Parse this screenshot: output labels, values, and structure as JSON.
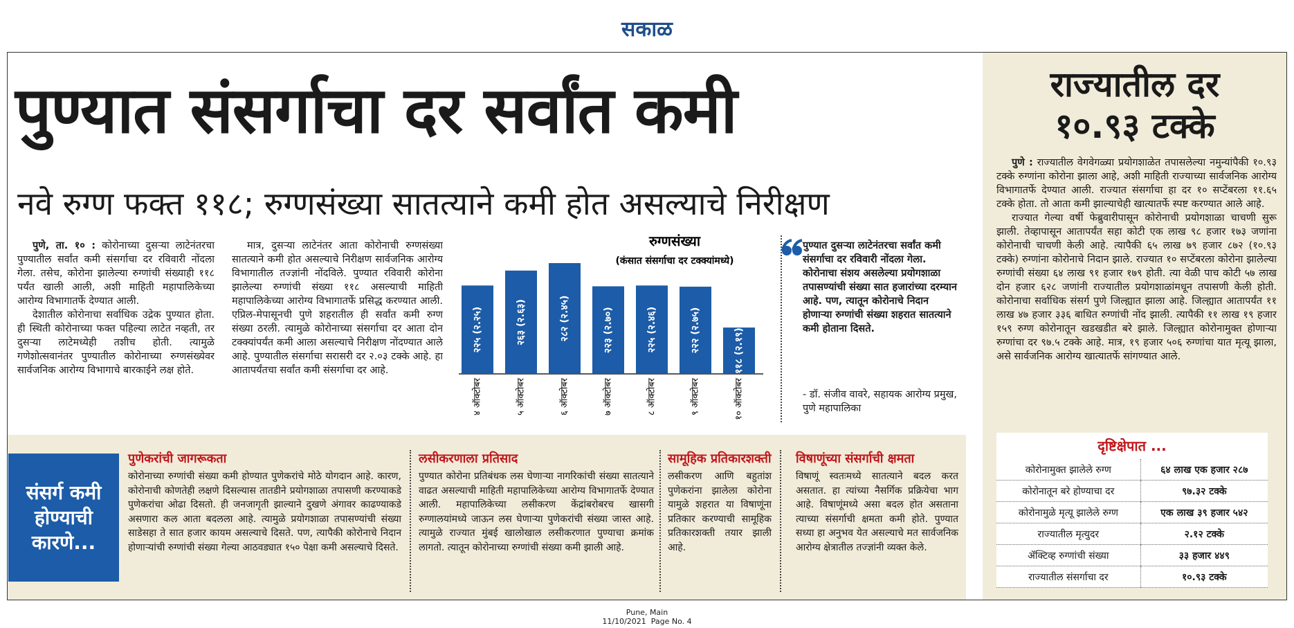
{
  "header": {
    "logo": "सकाळ"
  },
  "article": {
    "headline": "पुण्यात संसर्गाचा दर सर्वांत कमी",
    "subheadline": "नवे रुग्ण फक्त ११८; रुग्णसंख्या सातत्याने कमी होत असल्याचे निरीक्षण",
    "dateline": "पुणे, ता. १० :",
    "columns": [
      [
        "कोरोनाच्या दुसऱ्या लाटेनंतरचा पुण्यातील सर्वांत कमी संसर्गाचा दर रविवारी नोंदला गेला. तसेच, कोरोना झालेल्या रुग्णांची संख्याही ११८ पर्यंत खाली आली, अशी माहिती महापालिकेच्या आरोग्य विभागातर्फे देण्यात आली.",
        "देशातील कोरोनाचा सर्वाधिक उद्रेक पुण्यात होता. ही स्थिती कोरोनाच्या फक्त पहिल्या लाटेत नव्हती, तर दुसऱ्या लाटेमध्येही तशीच होती. त्यामुळे गणेशोत्सवानंतर पुण्यातील कोरोनाच्या रुग्णसंख्येवर सार्वजनिक आरोग्य विभागाचे बारकाईने लक्ष होते."
      ],
      [
        "मात्र, दुसऱ्या लाटेनंतर आता कोरोनाची रुग्णसंख्या सातत्याने कमी होत असल्याचे निरीक्षण सार्वजनिक आरोग्य विभागातील तज्ज्ञांनी नोंदविले. पुण्यात रविवारी कोरोना झालेल्या रुग्णांची संख्या ११८ असल्याची माहिती महापालिकेच्या आरोग्य विभागातर्फे प्रसिद्ध करण्यात आली. एप्रिल-मेपासूनची पुणे शहरातील ही सर्वांत कमी रुग्ण संख्या ठरली. त्यामुळे कोरोनाच्या संसर्गाचा दर आता दोन टक्क्यांपर्यंत कमी आला असल्याचे निरीक्षण नोंदण्यात आले आहे. पुण्यातील संसर्गाचा सरासरी दर २.०३ टक्के आहे. हा आतापर्यंतचा सर्वांत कमी संसर्गाचा दर आहे."
      ]
    ],
    "quote": {
      "text": "पुण्यात दुसऱ्या लाटेनंतरचा सर्वांत कमी संसर्गाचा दर रविवारी नोंदला गेला. कोरोनाचा संशय असलेल्या प्रयोगशाळा तपासण्यांची संख्या सात हजारांच्या दरम्यान आहे. पण, त्यातून कोरोनाचे निदान होणाऱ्या रुग्णांची संख्या शहरात सातत्याने कमी होताना दिसते.",
      "attribution": "- डॉ. संजीव वावरे, सहायक आरोग्य प्रमुख, पुणे महापालिका"
    }
  },
  "chart_data": {
    "type": "bar",
    "title": "रुग्णसंख्या",
    "subtitle": "(कंसात संसर्गाचा दर टक्क्यांमध्ये)",
    "categories": [
      "४ ऑक्टोबर",
      "५ ऑक्टोबर",
      "६ ऑक्टोबर",
      "७ ऑक्टोबर",
      "८ ऑक्टोबर",
      "९ ऑक्टोबर",
      "१० ऑक्टोबर"
    ],
    "values": [
      225,
      263,
      282,
      223,
      225,
      222,
      118
    ],
    "rates": [
      2.25,
      2.63,
      2.45,
      2.7,
      2.46,
      2.75,
      2.19
    ],
    "value_labels": [
      "२२५ (२.२५)",
      "२६३ (२.६३)",
      "२८२ (२.४५)",
      "२२३ (२.७०)",
      "२२५ (२.४६)",
      "२२२ (२.७५)",
      "११८ (२.१९)"
    ],
    "color": "#1c5ca8"
  },
  "sidebar": {
    "title": [
      "राज्यातील दर",
      "१०.९३ टक्के"
    ],
    "dateline": "पुणे :",
    "paragraphs": [
      "राज्यातील वेगवेगळ्या प्रयोगशाळेत तपासलेल्या नमुन्यांपैकी १०.९३ टक्के रुग्णांना कोरोना झाला आहे, अशी माहिती राज्याच्या सार्वजनिक आरोग्य विभागातर्फे देण्यात आली. राज्यात संसर्गाचा हा दर १० सप्टेंबरला ११.६५ टक्के होता. तो आता कमी झाल्याचेही खात्यातर्फे स्पष्ट करण्यात आले आहे.",
      "राज्यात गेल्या वर्षी फेब्रुवारीपासून कोरोनाची प्रयोगशाळा चाचणी सुरू झाली. तेव्हापासून आतापर्यंत सहा कोटी एक लाख ९८ हजार १७३ जणांना कोरोनाची चाचणी केली आहे. त्यापैकी ६५ लाख ७९ हजार ८७२ (१०.९३ टक्के) रुग्णांना कोरोनाचे निदान झाले. राज्यात १० सप्टेंबरला कोरोना झालेल्या रुग्णांची संख्या ६४ लाख ९१ हजार १७९ होती. त्या वेळी पाच कोटी ५७ लाख दोन हजार ६२८ जणांनी राज्यातील प्रयोगशाळांमधून तपासणी केली होती. कोरोनाचा सर्वाधिक संसर्ग पुणे जिल्ह्यात झाला आहे. जिल्ह्यात आतापर्यंत ११ लाख ४७ हजार ३३६ बाधित रुग्णांची नोंद झाली. त्यापैकी ११ लाख १९ हजार १५९ रुग्ण कोरोनातून खडखडीत बरे झाले. जिल्ह्यात कोरोनामुक्त होणाऱ्या रुग्णांचा दर ९७.५ टक्के आहे. मात्र, १९ हजार ५०६ रुग्णांचा यात मृत्यू झाला, असे सार्वजनिक आरोग्य खात्यातर्फे सांगण्यात आले."
    ],
    "table": {
      "title": "दृष्टिक्षेपात ...",
      "rows": [
        [
          "कोरोनामुक्त झालेले रुग्ण",
          "६४ लाख एक हजार २८७"
        ],
        [
          "कोरोनातून बरे होण्याचा दर",
          "९७.३२ टक्के"
        ],
        [
          "कोरोनामुळे मृत्यू झालेले रुग्ण",
          "एक लाख ३९ हजार ५४२"
        ],
        [
          "राज्यातील मृत्युदर",
          "२.१२ टक्के"
        ],
        [
          "ॲक्टिव्ह रुग्णांची संख्या",
          "३३ हजार ४४९"
        ],
        [
          "राज्यातील संसर्गाचा दर",
          "१०.९३ टक्के"
        ]
      ]
    }
  },
  "reasons": {
    "label": "संसर्ग कमी होण्याची कारणे...",
    "items": [
      {
        "heading": "पुणेकरांची जागरूकता",
        "text": "कोरोनाच्या रुग्णांची संख्या कमी होण्यात पुणेकरांचे मोठे योगदान आहे. कारण, कोरोनाची कोणतेही लक्षणे दिसल्यास तातडीने प्रयोगशाळा तपासणी करण्याकडे पुणेकरांचा ओढा दिसतो. ही जनजागृती झाल्याने दुखणे अंगावर काढण्याकडे असणारा कल आता बदलला आहे. त्यामुळे प्रयोगशाळा तपासण्यांची संख्या साडेसहा ते सात हजार कायम असल्याचे दिसते. पण, त्यापैकी कोरोनाचे निदान होणाऱ्यांची रुग्णांची संख्या गेल्या आठवड्यात १५० पेक्षा कमी असल्याचे दिसते."
      },
      {
        "heading": "लसीकरणाला प्रतिसाद",
        "text": "पुण्यात कोरोना प्रतिबंधक लस घेणाऱ्या नागरिकांची संख्या सातत्याने वाढत असल्याची माहिती महापालिकेच्या आरोग्य विभागातर्फे देण्यात आली. महापालिकेच्या लसीकरण केंद्रांबरोबरच खासगी रुग्णालयांमध्ये जाऊन लस घेणाऱ्या पुणेकरांची संख्या जास्त आहे. त्यामुळे राज्यात मुंबई खालोखाल लसीकरणात पुण्याचा क्रमांक लागतो. त्यातून कोरोनाच्या रुग्णांची संख्या कमी झाली आहे."
      },
      {
        "heading": "सामूहिक प्रतिकारशक्ती",
        "text": "लसीकरण आणि बहुतांश पुणेकरांना झालेला कोरोना यामुळे शहरात या विषाणूंना प्रतिकार करण्याची सामूहिक प्रतिकारशक्ती तयार झाली आहे."
      },
      {
        "heading": "विषाणूंच्या संसर्गाची क्षमता",
        "text": "विषाणूं स्वतःमध्ये सातत्याने बदल करत असतात. हा त्यांच्या नैसर्गिक प्रक्रियेचा भाग आहे. विषाणूंमध्ये असा बदल होत असताना त्याच्या संसर्गाची क्षमता कमी होते. पुण्यात सध्या हा अनुभव येत असल्याचे मत सार्वजनिक आरोग्य क्षेत्रातील तज्ज्ञांनी व्यक्त केले."
      }
    ]
  },
  "footer": {
    "edition": "Pune, Main",
    "date_page": "11/10/2021  Page No. 4"
  }
}
